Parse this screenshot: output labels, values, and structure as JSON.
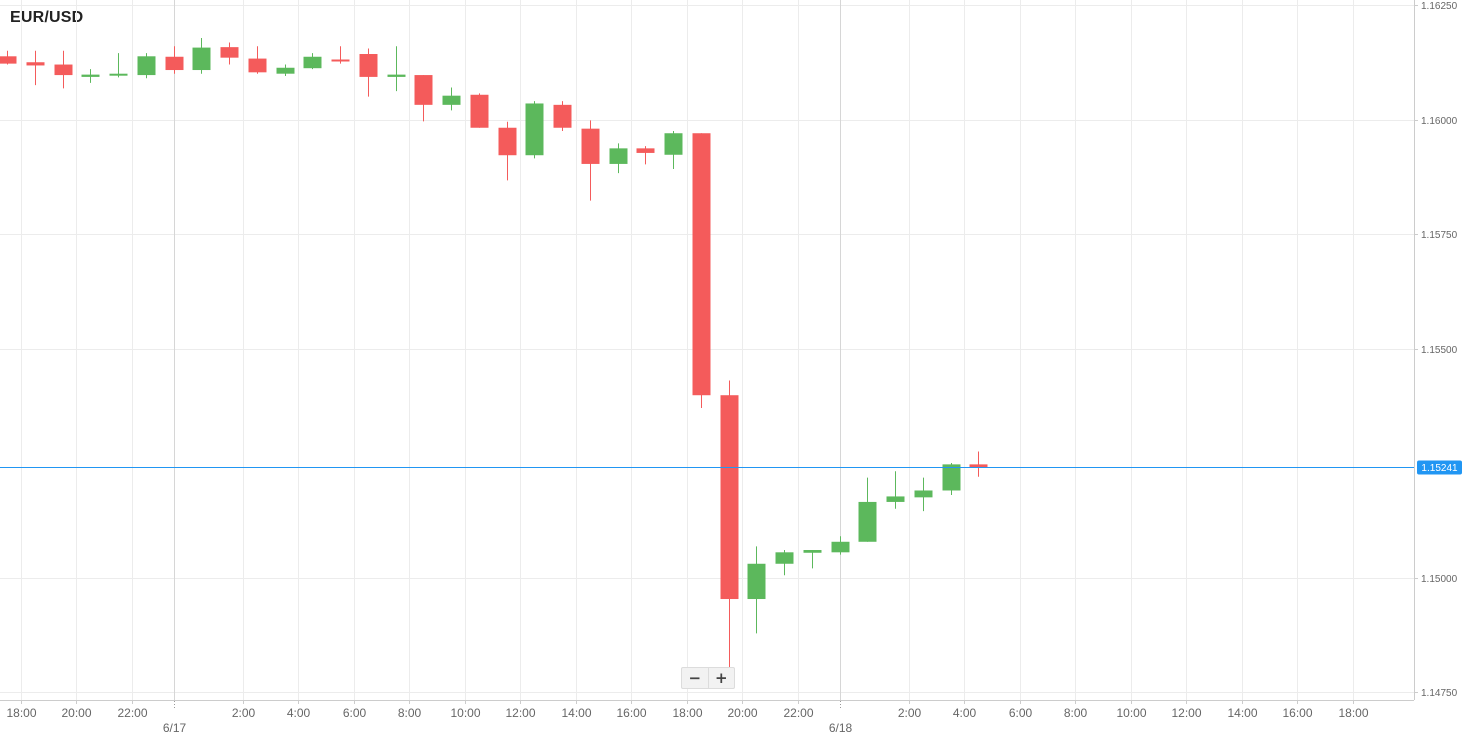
{
  "symbol": "EUR/USD",
  "zoom": {
    "zoom_out_label": "−",
    "zoom_in_label": "+"
  },
  "colors": {
    "up": "#5cb85c",
    "down": "#f45b5b",
    "current_price_line": "#2196f3",
    "grid": "#ececec",
    "axis_text": "#666666"
  },
  "chart_data": {
    "type": "candlestick",
    "title": "EUR/USD",
    "timeframe_hours": 1,
    "y_axis": {
      "min": 1.1475,
      "max": 1.1625,
      "ticks": [
        "1.16250",
        "1.16000",
        "1.15750",
        "1.15500",
        "1.15000",
        "1.14750"
      ],
      "position": "right"
    },
    "x_axis": {
      "ticks": [
        {
          "label": "18:00",
          "bar": 0.5
        },
        {
          "label": "20:00",
          "bar": 2.5
        },
        {
          "label": "22:00",
          "bar": 4.5
        },
        {
          "label": "2:00",
          "bar": 8.5
        },
        {
          "label": "4:00",
          "bar": 10.5
        },
        {
          "label": "6:00",
          "bar": 12.5
        },
        {
          "label": "8:00",
          "bar": 14.5
        },
        {
          "label": "10:00",
          "bar": 16.5
        },
        {
          "label": "12:00",
          "bar": 18.5
        },
        {
          "label": "14:00",
          "bar": 20.5
        },
        {
          "label": "16:00",
          "bar": 22.5
        },
        {
          "label": "18:00",
          "bar": 24.5
        },
        {
          "label": "20:00",
          "bar": 26.5
        },
        {
          "label": "22:00",
          "bar": 28.5
        },
        {
          "label": "2:00",
          "bar": 32.5
        },
        {
          "label": "4:00",
          "bar": 34.5
        },
        {
          "label": "6:00",
          "bar": 36.5
        },
        {
          "label": "8:00",
          "bar": 38.5
        },
        {
          "label": "10:00",
          "bar": 40.5
        },
        {
          "label": "12:00",
          "bar": 42.5
        },
        {
          "label": "14:00",
          "bar": 44.5
        },
        {
          "label": "16:00",
          "bar": 46.5
        },
        {
          "label": "18:00",
          "bar": 48.5
        }
      ],
      "date_labels": [
        {
          "label": "6/17",
          "bar": 6
        },
        {
          "label": "6/18",
          "bar": 30
        }
      ]
    },
    "grid": true,
    "current_price": 1.15241,
    "current_price_label": "1.15241",
    "candles": [
      {
        "o": 1.16138,
        "h": 1.1615,
        "l": 1.1612,
        "c": 1.16122
      },
      {
        "o": 1.16125,
        "h": 1.1615,
        "l": 1.16075,
        "c": 1.16118
      },
      {
        "o": 1.1612,
        "h": 1.1615,
        "l": 1.16068,
        "c": 1.16097
      },
      {
        "o": 1.16093,
        "h": 1.1611,
        "l": 1.1608,
        "c": 1.16098
      },
      {
        "o": 1.16097,
        "h": 1.16145,
        "l": 1.16092,
        "c": 1.161
      },
      {
        "o": 1.16097,
        "h": 1.16145,
        "l": 1.1609,
        "c": 1.16138
      },
      {
        "o": 1.16137,
        "h": 1.1616,
        "l": 1.161,
        "c": 1.16108
      },
      {
        "o": 1.16108,
        "h": 1.16178,
        "l": 1.161,
        "c": 1.16157
      },
      {
        "o": 1.16158,
        "h": 1.16168,
        "l": 1.1612,
        "c": 1.16135
      },
      {
        "o": 1.16133,
        "h": 1.1616,
        "l": 1.161,
        "c": 1.16103
      },
      {
        "o": 1.161,
        "h": 1.1612,
        "l": 1.16095,
        "c": 1.16113
      },
      {
        "o": 1.16112,
        "h": 1.16145,
        "l": 1.1611,
        "c": 1.16137
      },
      {
        "o": 1.16131,
        "h": 1.1616,
        "l": 1.16122,
        "c": 1.1613
      },
      {
        "o": 1.16143,
        "h": 1.16155,
        "l": 1.1605,
        "c": 1.16093
      },
      {
        "o": 1.16093,
        "h": 1.1616,
        "l": 1.16062,
        "c": 1.16098
      },
      {
        "o": 1.16097,
        "h": 1.16097,
        "l": 1.15996,
        "c": 1.16032
      },
      {
        "o": 1.16032,
        "h": 1.1607,
        "l": 1.1602,
        "c": 1.16052
      },
      {
        "o": 1.16054,
        "h": 1.16057,
        "l": 1.15982,
        "c": 1.15982
      },
      {
        "o": 1.15982,
        "h": 1.15995,
        "l": 1.15867,
        "c": 1.15922
      },
      {
        "o": 1.15922,
        "h": 1.1604,
        "l": 1.15915,
        "c": 1.16035
      },
      {
        "o": 1.16032,
        "h": 1.1604,
        "l": 1.15975,
        "c": 1.15982
      },
      {
        "o": 1.1598,
        "h": 1.15998,
        "l": 1.15823,
        "c": 1.15903
      },
      {
        "o": 1.15903,
        "h": 1.15948,
        "l": 1.15883,
        "c": 1.15937
      },
      {
        "o": 1.15937,
        "h": 1.15942,
        "l": 1.15902,
        "c": 1.15927
      },
      {
        "o": 1.15923,
        "h": 1.15975,
        "l": 1.15892,
        "c": 1.1597
      },
      {
        "o": 1.1597,
        "h": 1.1597,
        "l": 1.1537,
        "c": 1.15398
      },
      {
        "o": 1.15398,
        "h": 1.1543,
        "l": 1.14795,
        "c": 1.14953
      },
      {
        "o": 1.14953,
        "h": 1.15068,
        "l": 1.14878,
        "c": 1.1503
      },
      {
        "o": 1.1503,
        "h": 1.1506,
        "l": 1.15005,
        "c": 1.15055
      },
      {
        "o": 1.15054,
        "h": 1.1506,
        "l": 1.1502,
        "c": 1.1506
      },
      {
        "o": 1.15055,
        "h": 1.1509,
        "l": 1.1505,
        "c": 1.15078
      },
      {
        "o": 1.15078,
        "h": 1.15218,
        "l": 1.15078,
        "c": 1.15165
      },
      {
        "o": 1.15165,
        "h": 1.15232,
        "l": 1.1515,
        "c": 1.15177
      },
      {
        "o": 1.15175,
        "h": 1.15218,
        "l": 1.15145,
        "c": 1.1519
      },
      {
        "o": 1.1519,
        "h": 1.1525,
        "l": 1.1518,
        "c": 1.15247
      },
      {
        "o": 1.15247,
        "h": 1.15275,
        "l": 1.1522,
        "c": 1.15241
      }
    ]
  }
}
